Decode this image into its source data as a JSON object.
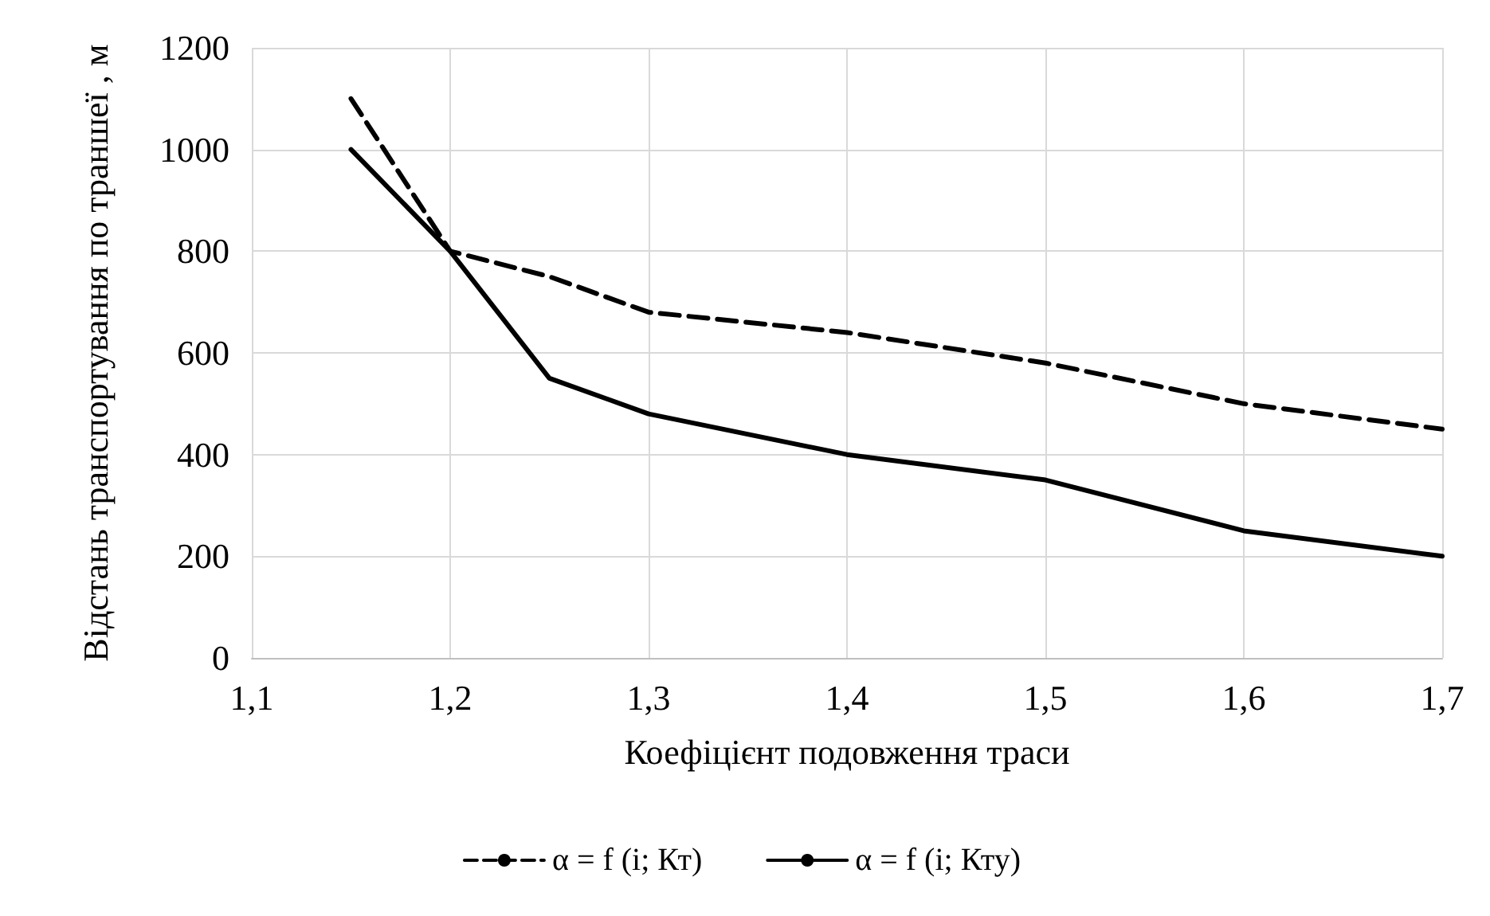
{
  "chart_data": {
    "type": "line",
    "xlabel": "Коефіцієнт подовження траси",
    "ylabel": "Відстань транспортування по траншеї , м",
    "x": [
      1.15,
      1.2,
      1.25,
      1.3,
      1.4,
      1.5,
      1.6,
      1.7
    ],
    "series": [
      {
        "name": "α = f (i; Кт)",
        "color": "#000000",
        "line_style": "dashed",
        "values": [
          1100,
          800,
          750,
          680,
          640,
          580,
          500,
          450
        ]
      },
      {
        "name": "α = f (i; Кту)",
        "color": "#000000",
        "line_style": "solid",
        "values": [
          1000,
          800,
          550,
          480,
          400,
          350,
          250,
          200
        ]
      }
    ],
    "xlim": [
      1.1,
      1.7
    ],
    "xticks": [
      {
        "value": 1.1,
        "label": "1,1"
      },
      {
        "value": 1.2,
        "label": "1,2"
      },
      {
        "value": 1.3,
        "label": "1,3"
      },
      {
        "value": 1.4,
        "label": "1,4"
      },
      {
        "value": 1.5,
        "label": "1,5"
      },
      {
        "value": 1.6,
        "label": "1,6"
      },
      {
        "value": 1.7,
        "label": "1,7"
      }
    ],
    "ylim": [
      0,
      1200
    ],
    "yticks": [
      0,
      200,
      400,
      600,
      800,
      1000,
      1200
    ],
    "grid": true,
    "legend": "bottom",
    "marker": "none"
  }
}
